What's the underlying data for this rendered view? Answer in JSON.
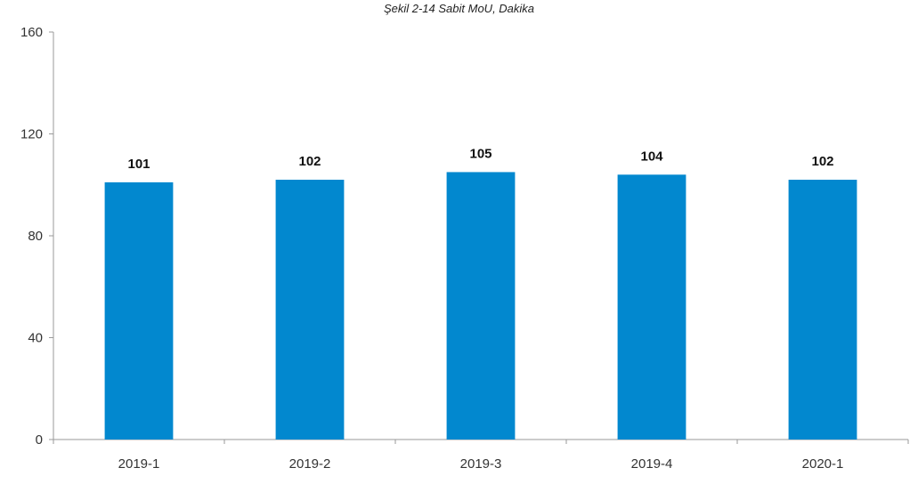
{
  "chart_data": {
    "type": "bar",
    "title": "Şekil 2-14 Sabit MoU, Dakika",
    "xlabel": "",
    "ylabel": "",
    "categories": [
      "2019-1",
      "2019-2",
      "2019-3",
      "2019-4",
      "2020-1"
    ],
    "values": [
      101,
      102,
      105,
      104,
      102
    ],
    "value_labels": [
      "101",
      "102",
      "105",
      "104",
      "102"
    ],
    "ylim": [
      0,
      160
    ],
    "yticks": [
      0,
      40,
      80,
      120,
      160
    ],
    "ytick_labels": [
      "0",
      "40",
      "80",
      "120",
      "160"
    ],
    "grid": false,
    "legend": "none",
    "bar_color": "#0288cf",
    "axis_color": "#999999"
  }
}
